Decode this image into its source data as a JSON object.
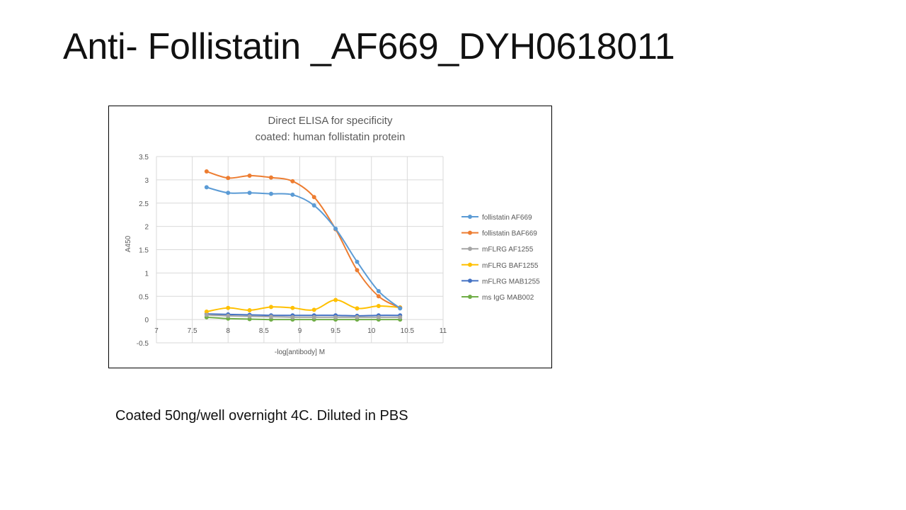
{
  "slide": {
    "title": "Anti- Follistatin _AF669_DYH0618011",
    "note": "Coated 50ng/well overnight 4C. Diluted in PBS"
  },
  "chart_data": {
    "type": "line",
    "title": "Direct ELISA for specificity",
    "subtitle": "coated: human follistatin protein",
    "xlabel": "-log[antibody] M",
    "ylabel": "A450",
    "xlim": [
      7,
      11
    ],
    "ylim": [
      -0.5,
      3.5
    ],
    "xticks": [
      7,
      7.5,
      8,
      8.5,
      9,
      9.5,
      10,
      10.5,
      11
    ],
    "yticks": [
      -0.5,
      0,
      0.5,
      1,
      1.5,
      2,
      2.5,
      3,
      3.5
    ],
    "grid": true,
    "legend_position": "right",
    "x": [
      7.7,
      8.0,
      8.3,
      8.6,
      8.9,
      9.2,
      9.5,
      9.8,
      10.1,
      10.4
    ],
    "series": [
      {
        "name": "follistatin AF669",
        "color": "#5B9BD5",
        "values": [
          2.84,
          2.72,
          2.72,
          2.7,
          2.68,
          2.45,
          1.95,
          1.24,
          0.61,
          0.24
        ]
      },
      {
        "name": "follistatin BAF669",
        "color": "#ED7D31",
        "values": [
          3.18,
          3.04,
          3.09,
          3.05,
          2.97,
          2.63,
          1.94,
          1.06,
          0.5,
          0.25
        ]
      },
      {
        "name": "mFLRG AF1255",
        "color": "#A5A5A5",
        "values": [
          0.1,
          0.08,
          0.07,
          0.06,
          0.05,
          0.05,
          0.05,
          0.05,
          0.05,
          0.05
        ]
      },
      {
        "name": "mFLRG BAF1255",
        "color": "#FFC000",
        "values": [
          0.17,
          0.25,
          0.2,
          0.27,
          0.25,
          0.21,
          0.42,
          0.24,
          0.29,
          0.26
        ]
      },
      {
        "name": "mFLRG MAB1255",
        "color": "#4472C4",
        "values": [
          0.12,
          0.11,
          0.1,
          0.09,
          0.09,
          0.09,
          0.09,
          0.08,
          0.09,
          0.09
        ]
      },
      {
        "name": "ms IgG MAB002",
        "color": "#70AD47",
        "values": [
          0.05,
          0.02,
          0.01,
          0.0,
          0.0,
          0.0,
          0.0,
          0.0,
          0.0,
          0.0
        ]
      }
    ]
  }
}
